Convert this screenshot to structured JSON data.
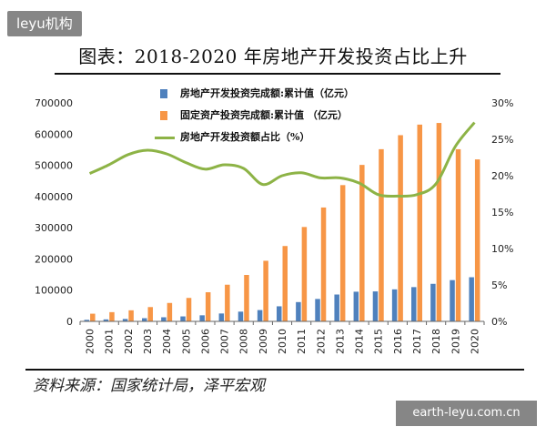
{
  "watermarks": {
    "top": "leyu机构",
    "bottom": "earth-leyu.com.cn"
  },
  "title": "图表：2018-2020 年房地产开发投资占比上升",
  "source": "资料来源：国家统计局，泽平宏观",
  "colors": {
    "blue": "#4f81bd",
    "orange": "#f79646",
    "green": "#8db346"
  },
  "chart_data": {
    "type": "bar",
    "categories": [
      "2000",
      "2001",
      "2002",
      "2003",
      "2004",
      "2005",
      "2006",
      "2007",
      "2008",
      "2009",
      "2010",
      "2011",
      "2012",
      "2013",
      "2014",
      "2015",
      "2016",
      "2017",
      "2018",
      "2019",
      "2020"
    ],
    "series": [
      {
        "name": "房地产开发投资完成额:累计值（亿元）",
        "axis": "left",
        "kind": "bar",
        "color": "#4f81bd",
        "values": [
          4984,
          6344,
          7791,
          10154,
          13158,
          15909,
          19423,
          25289,
          31203,
          36242,
          48259,
          61797,
          71804,
          86013,
          95036,
          95979,
          102581,
          109799,
          120264,
          132194,
          141443
        ]
      },
      {
        "name": "固定资产投资完成额:累计值 （亿元）",
        "axis": "left",
        "kind": "bar",
        "color": "#f79646",
        "values": [
          24584,
          29548,
          35488,
          45812,
          59028,
          75095,
          93369,
          117464,
          148738,
          194139,
          241431,
          302396,
          364854,
          436528,
          501265,
          551590,
          596501,
          630352,
          635636,
          551478,
          518907
        ]
      },
      {
        "name": "房地产开发投资额占比（%）",
        "axis": "right",
        "kind": "line",
        "color": "#8db346",
        "values": [
          20.3,
          21.5,
          22.9,
          23.5,
          23.0,
          21.8,
          20.9,
          21.5,
          21.0,
          18.8,
          20.0,
          20.4,
          19.7,
          19.7,
          19.0,
          17.4,
          17.2,
          17.4,
          18.9,
          24.0,
          27.3
        ]
      }
    ],
    "left_axis": {
      "min": 0,
      "max": 700000,
      "step": 100000,
      "ticks": [
        "0",
        "100000",
        "200000",
        "300000",
        "400000",
        "500000",
        "600000",
        "700000"
      ]
    },
    "right_axis": {
      "min": 0,
      "max": 30,
      "step": 5,
      "ticks": [
        "0%",
        "5%",
        "10%",
        "15%",
        "20%",
        "25%",
        "30%"
      ]
    },
    "grid": false,
    "legend_position": "top-center"
  }
}
